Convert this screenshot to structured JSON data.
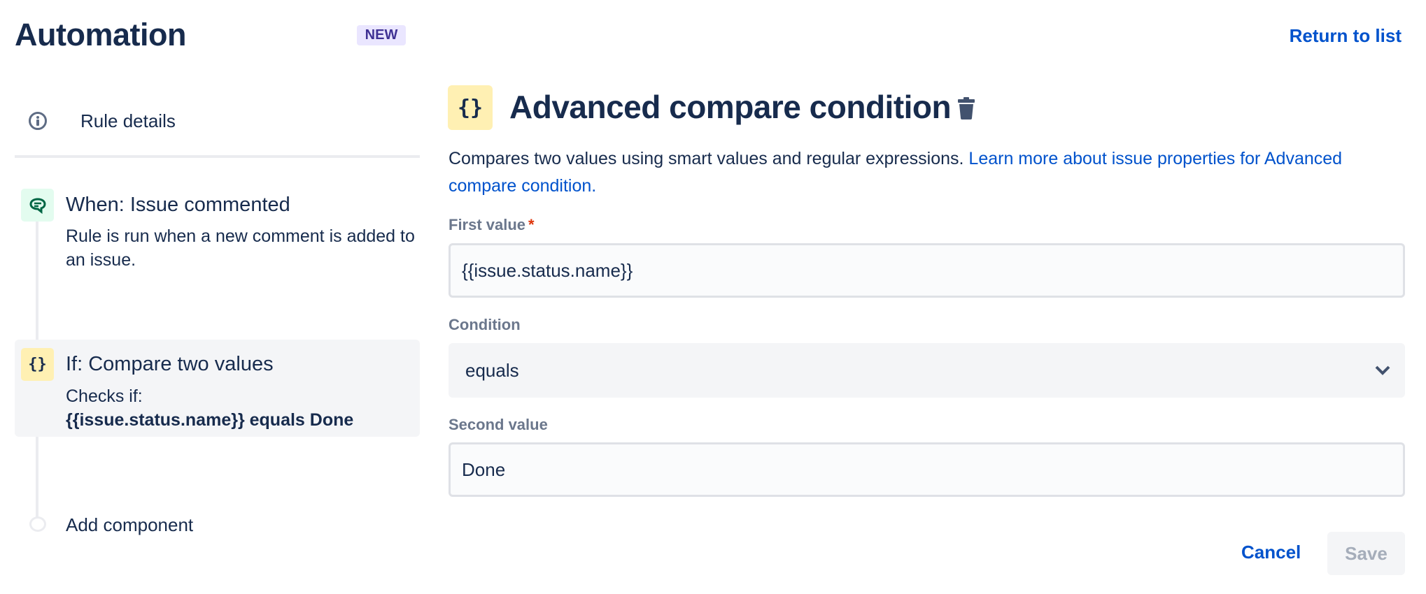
{
  "header": {
    "title": "Automation",
    "badge": "NEW",
    "return_link": "Return to list"
  },
  "sidebar": {
    "rule_details": "Rule details",
    "steps": [
      {
        "title": "When: Issue commented",
        "description": "Rule is run when a new comment is added to an issue.",
        "icon": "comment-icon"
      },
      {
        "title": "If: Compare two values",
        "description": "Checks if:",
        "detail": "{{issue.status.name}} equals Done",
        "icon": "braces-icon",
        "icon_glyph": "{}"
      }
    ],
    "add_component": "Add component"
  },
  "main": {
    "icon_glyph": "{}",
    "title": "Advanced compare condition",
    "description": "Compares two values using smart values and regular expressions.",
    "learn_more": "Learn more about issue properties for Advanced compare condition.",
    "first_value": {
      "label": "First value",
      "required": "*",
      "value": "{{issue.status.name}}"
    },
    "condition": {
      "label": "Condition",
      "value": "equals"
    },
    "second_value": {
      "label": "Second value",
      "value": "Done"
    },
    "cancel": "Cancel",
    "save": "Save"
  },
  "colors": {
    "primary": "#0052cc",
    "text": "#172b4d",
    "trigger_bg": "#e3fcef",
    "condition_bg": "#fff0b3",
    "badge_bg": "#eae6ff"
  }
}
